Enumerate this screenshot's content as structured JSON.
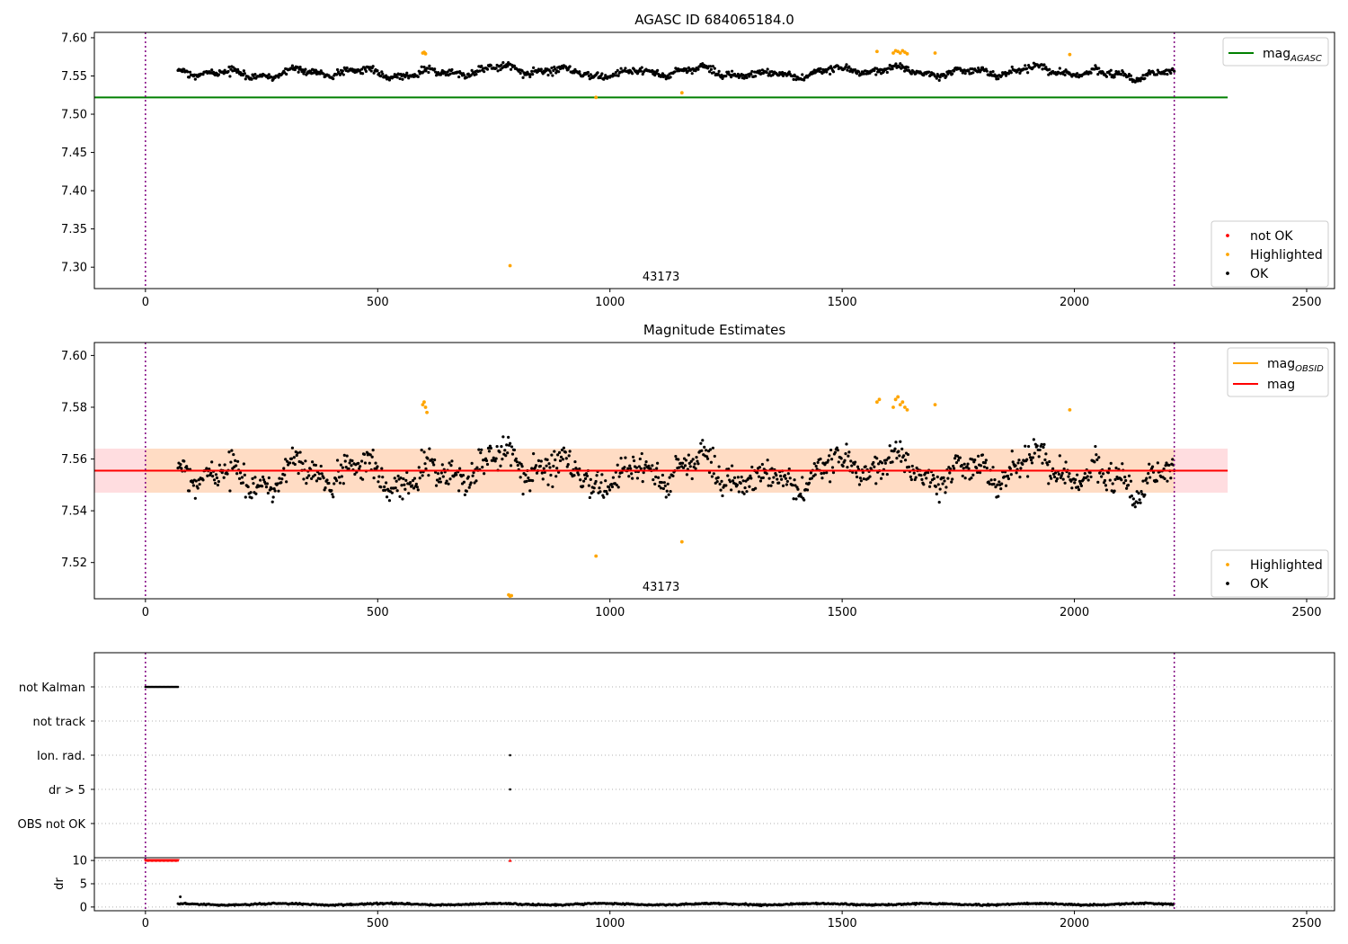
{
  "chart_data": [
    {
      "type": "scatter",
      "title": "AGASC ID 684065184.0",
      "xlim": [
        -110,
        2560
      ],
      "ylim": [
        7.272,
        7.607
      ],
      "x_ticks": [
        0,
        500,
        1000,
        1500,
        2000,
        2500
      ],
      "y_ticks": [
        7.3,
        7.35,
        7.4,
        7.45,
        7.5,
        7.55,
        7.6
      ],
      "obsid_label": "43173",
      "obsid_label_x": 1110,
      "vlines": [
        0,
        2215
      ],
      "mean_line": {
        "name": "mag_AGASC",
        "y": 7.522,
        "x_range": [
          -110,
          2330
        ],
        "color": "#008000"
      },
      "legend_lines": [
        {
          "base": "mag",
          "sub": "AGASC",
          "color": "#008000"
        }
      ],
      "legend_points": [
        {
          "name": "not OK",
          "color": "#ff0000"
        },
        {
          "name": "Highlighted",
          "color": "#ffa500"
        },
        {
          "name": "OK",
          "color": "#000000"
        }
      ],
      "ok_series": {
        "x_range": [
          70,
          2215
        ],
        "baseline": 7.555,
        "amplitude": 0.0075,
        "noise": 0.0045,
        "count": 1150,
        "color": "#000000"
      },
      "highlighted_points": [
        [
          597,
          7.58
        ],
        [
          600,
          7.581
        ],
        [
          603,
          7.579
        ],
        [
          785,
          7.302
        ],
        [
          970,
          7.522
        ],
        [
          1155,
          7.528
        ],
        [
          1575,
          7.582
        ],
        [
          1610,
          7.58
        ],
        [
          1615,
          7.583
        ],
        [
          1620,
          7.582
        ],
        [
          1625,
          7.58
        ],
        [
          1630,
          7.583
        ],
        [
          1635,
          7.581
        ],
        [
          1640,
          7.579
        ],
        [
          1700,
          7.58
        ],
        [
          1990,
          7.578
        ]
      ]
    },
    {
      "type": "scatter",
      "title": "Magnitude Estimates",
      "xlim": [
        -110,
        2560
      ],
      "ylim": [
        7.506,
        7.605
      ],
      "x_ticks": [
        0,
        500,
        1000,
        1500,
        2000,
        2500
      ],
      "y_ticks": [
        7.52,
        7.54,
        7.56,
        7.58,
        7.6
      ],
      "obsid_label": "43173",
      "obsid_label_x": 1110,
      "vlines": [
        0,
        2215
      ],
      "mag_line": {
        "name": "mag",
        "y": 7.5555,
        "x_range": [
          -110,
          2330
        ],
        "color": "#ff0000"
      },
      "mag_band": {
        "y_range": [
          7.547,
          7.564
        ],
        "x_range": [
          -110,
          2330
        ],
        "color": "#ffdde0"
      },
      "obsid_line": {
        "name": "mag_OBSID",
        "y": 7.5555,
        "x_range": [
          0,
          2215
        ],
        "color": "#ffa500"
      },
      "obsid_band": {
        "y_range": [
          7.547,
          7.564
        ],
        "x_range": [
          0,
          2215
        ],
        "color": "#ffdcc4"
      },
      "legend_lines": [
        {
          "base": "mag",
          "sub": "OBSID",
          "color": "#ffa500"
        },
        {
          "base": "mag",
          "sub": "",
          "color": "#ff0000"
        }
      ],
      "legend_points": [
        {
          "name": "Highlighted",
          "color": "#ffa500"
        },
        {
          "name": "OK",
          "color": "#000000"
        }
      ],
      "ok_series": {
        "x_range": [
          70,
          2215
        ],
        "baseline": 7.555,
        "amplitude": 0.0075,
        "noise": 0.0055,
        "count": 1150,
        "color": "#000000"
      },
      "highlighted_points": [
        [
          597,
          7.581
        ],
        [
          600,
          7.582
        ],
        [
          603,
          7.58
        ],
        [
          606,
          7.578
        ],
        [
          782,
          7.5075
        ],
        [
          785,
          7.507
        ],
        [
          788,
          7.5072
        ],
        [
          970,
          7.5225
        ],
        [
          1155,
          7.528
        ],
        [
          1575,
          7.582
        ],
        [
          1580,
          7.583
        ],
        [
          1610,
          7.58
        ],
        [
          1615,
          7.583
        ],
        [
          1620,
          7.584
        ],
        [
          1625,
          7.581
        ],
        [
          1630,
          7.582
        ],
        [
          1635,
          7.58
        ],
        [
          1640,
          7.579
        ],
        [
          1700,
          7.581
        ],
        [
          1990,
          7.579
        ]
      ]
    },
    {
      "type": "scatter",
      "title": "",
      "xlim": [
        -110,
        2560
      ],
      "x_ticks": [
        0,
        500,
        1000,
        1500,
        2000,
        2500
      ],
      "vlines": [
        0,
        2215
      ],
      "flag_categories": [
        "not Kalman",
        "not track",
        "Ion. rad.",
        "dr > 5",
        "OBS not OK"
      ],
      "flags": {
        "not Kalman": {
          "x_range": [
            0,
            70
          ],
          "step": 2.5
        },
        "not track": [],
        "Ion. rad.": [
          785
        ],
        "dr > 5": [
          785
        ],
        "OBS not OK": []
      },
      "dr_panel": {
        "ylabel": "dr",
        "ylim": [
          -0.8,
          10.6
        ],
        "y_ticks": [
          0,
          5,
          10
        ],
        "clipped_value": 10,
        "clipped_points": {
          "x_range": [
            0,
            70
          ],
          "step": 2.5,
          "extra": [
            785
          ],
          "color": "#ff0000"
        },
        "ok_points": {
          "x_range": [
            70,
            2215
          ],
          "baseline": 0.6,
          "amplitude": 0.3,
          "color": "#000000"
        },
        "first_point": [
          75,
          2.2
        ]
      }
    }
  ]
}
